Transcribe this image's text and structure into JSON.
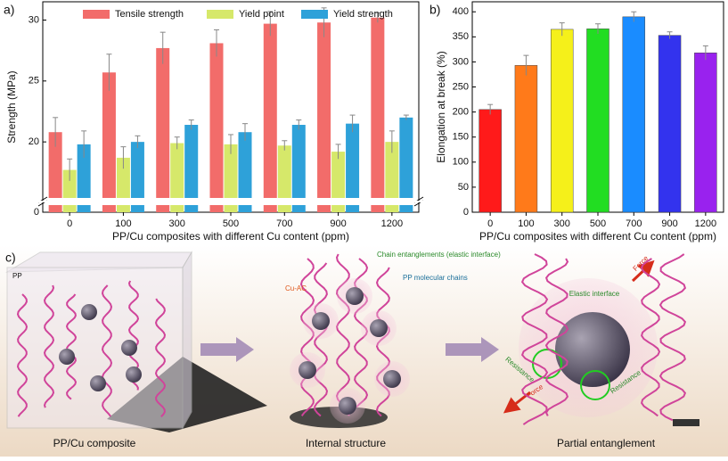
{
  "chart_data": [
    {
      "type": "bar",
      "label": "a)",
      "x_label": "PP/Cu composites with different Cu content (ppm)",
      "y_label": "Strength (MPa)",
      "categories": [
        "0",
        "100",
        "300",
        "500",
        "700",
        "900",
        "1200"
      ],
      "series": [
        {
          "name": "Tensile strength",
          "color": "#f26c6a",
          "values": [
            20.8,
            25.7,
            27.7,
            28.1,
            29.7,
            29.8,
            30.2
          ],
          "errors": [
            1.2,
            1.5,
            1.3,
            1.1,
            1.0,
            1.2,
            0.4
          ]
        },
        {
          "name": "Yield point",
          "color": "#d6e86a",
          "values": [
            17.7,
            18.7,
            19.9,
            19.8,
            19.7,
            19.2,
            20.0
          ],
          "errors": [
            0.9,
            0.9,
            0.5,
            0.8,
            0.4,
            0.6,
            0.9
          ]
        },
        {
          "name": "Yield strength",
          "color": "#2ea1d9",
          "values": [
            19.8,
            20.0,
            21.4,
            20.8,
            21.4,
            21.5,
            22.0
          ],
          "errors": [
            1.1,
            0.5,
            0.4,
            0.7,
            0.4,
            0.7,
            0.2
          ]
        }
      ],
      "ylim": [
        0,
        31.5
      ],
      "ybreak": [
        0.7,
        15.4
      ],
      "yticks": [
        0,
        20,
        25,
        30
      ]
    },
    {
      "type": "bar",
      "label": "b)",
      "x_label": "PP/Cu composites with different Cu content (ppm)",
      "y_label": "Elongation at break (%)",
      "categories": [
        "0",
        "100",
        "300",
        "500",
        "700",
        "900",
        "1200"
      ],
      "values": [
        205,
        293,
        365,
        366,
        390,
        353,
        318
      ],
      "errors": [
        10,
        20,
        13,
        10,
        10,
        7,
        14
      ],
      "colors": [
        "#ff1a1a",
        "#ff7a1a",
        "#f5f01a",
        "#22dd22",
        "#1a8cff",
        "#3333ee",
        "#9922ee"
      ],
      "ylim": [
        0,
        420
      ],
      "yticks": [
        0,
        50,
        100,
        150,
        200,
        250,
        300,
        350,
        400
      ]
    }
  ],
  "diagram": {
    "label": "c)",
    "panels": [
      {
        "title": "PP/Cu composite",
        "texts": [
          "PP"
        ]
      },
      {
        "title": "Internal structure",
        "texts": [
          "Chain entanglements (elastic interface)",
          "Cu-AC",
          "PP molecular chains"
        ]
      },
      {
        "title": "Partial entanglement",
        "texts": [
          "Elastic interface",
          "Force",
          "Force",
          "Resistance",
          "Resistance"
        ]
      }
    ]
  }
}
